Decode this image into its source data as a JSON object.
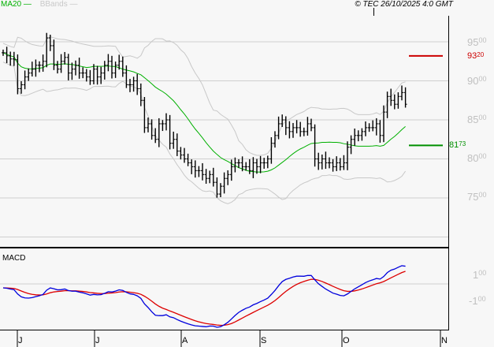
{
  "legend": {
    "ma": "MA20",
    "bbands": "BBands"
  },
  "copyright": "© TEC 26/10/2025 4:0 GMT",
  "macd_label": "MACD",
  "colors": {
    "ma": "#00b000",
    "bands": "#c8c8c8",
    "resistance": "#cc0000",
    "support": "#009000",
    "macd": "#0000dd",
    "signal": "#dd0000"
  },
  "price_axis": [
    {
      "main": "95",
      "frac": "00"
    },
    {
      "main": "90",
      "frac": "00"
    },
    {
      "main": "85",
      "frac": "00"
    },
    {
      "main": "80",
      "frac": "00"
    },
    {
      "main": "75",
      "frac": "00"
    }
  ],
  "macd_axis": [
    {
      "main": "1",
      "frac": "00"
    },
    {
      "main": "-1",
      "frac": "00"
    }
  ],
  "resistance": {
    "main": "93",
    "frac": "20",
    "value": 9320
  },
  "support": {
    "main": "81",
    "frac": "73",
    "value": 8173
  },
  "x_labels": [
    "J",
    "J",
    "A",
    "S",
    "O",
    "N"
  ],
  "chart_data": {
    "type": "ohlc",
    "title": "",
    "ylim": [
      7000,
      9800
    ],
    "indicators": [
      "MA20",
      "BBands",
      "MACD"
    ],
    "closes": [
      9360,
      9320,
      9280,
      9270,
      8900,
      8950,
      9050,
      9100,
      9150,
      9200,
      9200,
      9250,
      9550,
      9450,
      9200,
      9150,
      9250,
      9300,
      9100,
      9150,
      9200,
      9100,
      9100,
      9050,
      9000,
      9150,
      9050,
      9100,
      9200,
      9250,
      9100,
      9200,
      9250,
      9100,
      8950,
      8950,
      9000,
      8900,
      8750,
      8400,
      8450,
      8300,
      8250,
      8450,
      8450,
      8500,
      8200,
      8250,
      8100,
      8050,
      8000,
      7950,
      7900,
      7850,
      7850,
      7800,
      7750,
      7800,
      7700,
      7550,
      7650,
      7750,
      7800,
      7900,
      7950,
      7950,
      7900,
      7900,
      7850,
      7950,
      7900,
      7950,
      7950,
      8000,
      8200,
      8300,
      8450,
      8500,
      8400,
      8350,
      8400,
      8400,
      8350,
      8350,
      8450,
      8400,
      8000,
      7950,
      8000,
      7950,
      7950,
      7900,
      7950,
      7900,
      7950,
      8150,
      8250,
      8300,
      8300,
      8350,
      8400,
      8400,
      8400,
      8450,
      8300,
      8600,
      8800,
      8750,
      8700,
      8800,
      8850,
      8700
    ]
  }
}
